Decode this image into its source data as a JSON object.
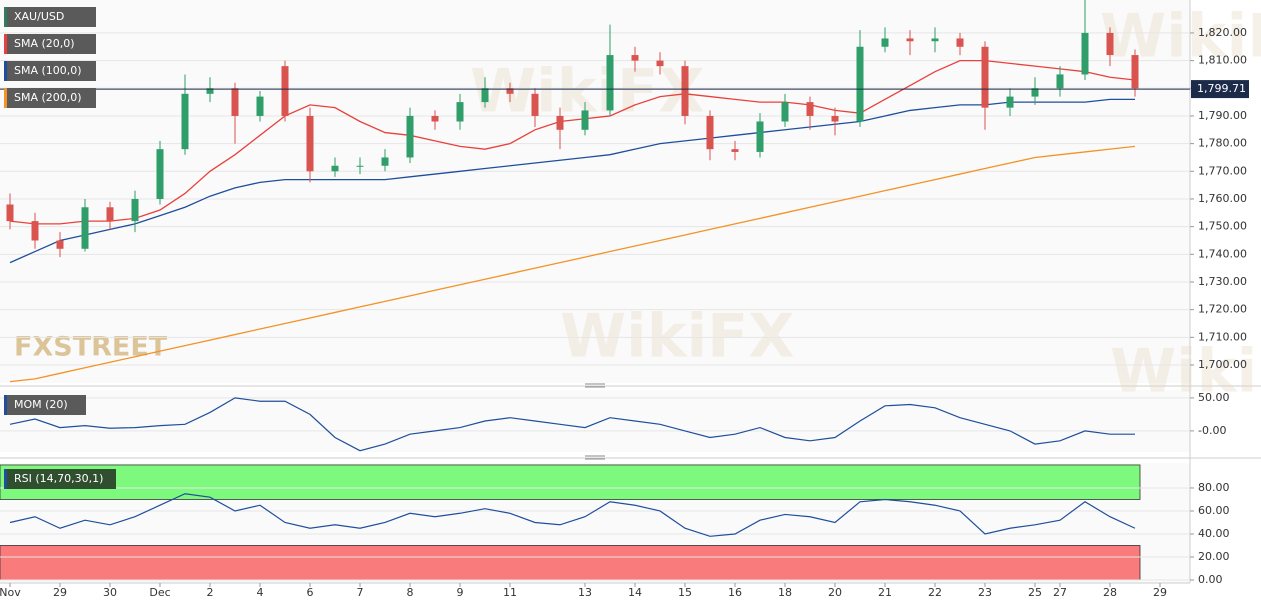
{
  "chart_data": [
    {
      "type": "candlestick",
      "watermark": "FXSTREET",
      "watermark_2": "WikiFX",
      "categories": [
        "Nov",
        null,
        "29",
        null,
        "30",
        null,
        "Dec",
        null,
        "2",
        null,
        "4",
        null,
        "6",
        null,
        "7",
        null,
        "8",
        null,
        "9",
        null,
        "11",
        null,
        null,
        "13",
        null,
        "14",
        null,
        "15",
        null,
        "16",
        null,
        "18",
        null,
        "20",
        null,
        "21",
        null,
        "22",
        null,
        "23",
        null,
        "25",
        "27",
        null,
        "28",
        null,
        "29"
      ],
      "series": [
        {
          "name": "XAU/USD",
          "legend_color": "#2e7d5b",
          "up_color": "#2f9e6a",
          "down_color": "#d9534f",
          "open": [
            1758,
            1752,
            1745,
            1742,
            1757,
            1752,
            1760,
            1778,
            1798,
            1800,
            1790,
            1808,
            1790,
            1770,
            1772,
            1772,
            1775,
            1790,
            1788,
            1795,
            1800,
            1798,
            1790,
            1785,
            1792,
            1812,
            1810,
            1808,
            1790,
            1778,
            1777,
            1788,
            1795,
            1790,
            1788,
            1815,
            1818,
            1817,
            1818,
            1815,
            1793,
            1797,
            1800,
            1805,
            1820,
            1812,
            null
          ],
          "high": [
            1762,
            1755,
            1748,
            1760,
            1759,
            1763,
            1781,
            1805,
            1804,
            1802,
            1799,
            1810,
            1793,
            1775,
            1775,
            1778,
            1793,
            1792,
            1798,
            1804,
            1802,
            1800,
            1793,
            1795,
            1823,
            1815,
            1813,
            1810,
            1792,
            1781,
            1791,
            1798,
            1797,
            1793,
            1821,
            1822,
            1821,
            1822,
            1820,
            1817,
            1800,
            1804,
            1808,
            1832,
            1822,
            1814,
            null
          ],
          "low": [
            1749,
            1742,
            1739,
            1741,
            1749,
            1748,
            1758,
            1776,
            1795,
            1780,
            1788,
            1788,
            1766,
            1768,
            1769,
            1770,
            1773,
            1785,
            1785,
            1793,
            1795,
            1786,
            1778,
            1783,
            1790,
            1806,
            1805,
            1787,
            1774,
            1774,
            1775,
            1786,
            1785,
            1783,
            1786,
            1813,
            1812,
            1813,
            1812,
            1785,
            1790,
            1794,
            1797,
            1803,
            1808,
            1797,
            null
          ],
          "close": [
            1752,
            1745,
            1742,
            1757,
            1752,
            1760,
            1778,
            1798,
            1800,
            1790,
            1797,
            1790,
            1770,
            1772,
            1772,
            1775,
            1790,
            1788,
            1795,
            1800,
            1798,
            1790,
            1785,
            1792,
            1812,
            1810,
            1808,
            1790,
            1778,
            1777,
            1788,
            1795,
            1790,
            1788,
            1815,
            1818,
            1817,
            1818,
            1815,
            1793,
            1797,
            1800,
            1805,
            1820,
            1812,
            1800,
            null
          ]
        }
      ],
      "lines": [
        {
          "name": "SMA (20,0)",
          "color": "#e8413b",
          "values": [
            1752,
            1751,
            1751,
            1752,
            1752,
            1753,
            1756,
            1762,
            1770,
            1776,
            1783,
            1790,
            1794,
            1793,
            1788,
            1784,
            1783,
            1781,
            1779,
            1778,
            1780,
            1785,
            1788,
            1789,
            1790,
            1794,
            1797,
            1798,
            1797,
            1796,
            1795,
            1795,
            1794,
            1792,
            1791,
            1796,
            1801,
            1806,
            1810,
            1810,
            1809,
            1808,
            1807,
            1806,
            1804,
            1803,
            null
          ]
        },
        {
          "name": "SMA (100,0)",
          "color": "#1f4e9c",
          "values": [
            1737,
            1741,
            1745,
            1747,
            1749,
            1751,
            1754,
            1757,
            1761,
            1764,
            1766,
            1767,
            1767,
            1767,
            1767,
            1767,
            1768,
            1769,
            1770,
            1771,
            1772,
            1773,
            1774,
            1775,
            1776,
            1778,
            1780,
            1781,
            1782,
            1783,
            1784,
            1785,
            1786,
            1787,
            1788,
            1790,
            1792,
            1793,
            1794,
            1794,
            1795,
            1795,
            1795,
            1795,
            1796,
            1796,
            null
          ]
        },
        {
          "name": "SMA (200,0)",
          "color": "#f39325",
          "values": [
            1694,
            1695,
            1697,
            1699,
            1701,
            1703,
            1705,
            1707,
            1709,
            1711,
            1713,
            1715,
            1717,
            1719,
            1721,
            1723,
            1725,
            1727,
            1729,
            1731,
            1733,
            1735,
            1737,
            1739,
            1741,
            1743,
            1745,
            1747,
            1749,
            1751,
            1753,
            1755,
            1757,
            1759,
            1761,
            1763,
            1765,
            1767,
            1769,
            1771,
            1773,
            1775,
            1776,
            1777,
            1778,
            1779,
            null
          ]
        }
      ],
      "last_price": {
        "value": 1799.71,
        "label": "1,799.71"
      },
      "last_price_color": "#1c2b4a",
      "ylim": [
        1693.5,
        1831.9
      ],
      "yticks": [
        {
          "value": 1700,
          "label": "1,700.00"
        },
        {
          "value": 1710,
          "label": "1,710.00"
        },
        {
          "value": 1720,
          "label": "1,720.00"
        },
        {
          "value": 1730,
          "label": "1,730.00"
        },
        {
          "value": 1740,
          "label": "1,740.00"
        },
        {
          "value": 1750,
          "label": "1,750.00"
        },
        {
          "value": 1760,
          "label": "1,760.00"
        },
        {
          "value": 1770,
          "label": "1,770.00"
        },
        {
          "value": 1780,
          "label": "1,780.00"
        },
        {
          "value": 1790,
          "label": "1,790.00"
        },
        {
          "value": 1800,
          "label": "1,800.00"
        },
        {
          "value": 1810,
          "label": "1,810.00"
        },
        {
          "value": 1820,
          "label": "1,820.00"
        }
      ],
      "grid": true
    },
    {
      "type": "line",
      "series": [
        {
          "name": "MOM (20)",
          "color": "#1f4e9c",
          "values": [
            10,
            18,
            5,
            8,
            4,
            5,
            8,
            10,
            28,
            50,
            45,
            45,
            25,
            -10,
            -30,
            -20,
            -5,
            0,
            5,
            15,
            20,
            15,
            10,
            5,
            20,
            15,
            10,
            0,
            -10,
            -5,
            5,
            -10,
            -15,
            -10,
            15,
            38,
            40,
            35,
            20,
            10,
            0,
            -20,
            -15,
            0,
            -5,
            -5,
            null
          ]
        }
      ],
      "ylim": [
        -32,
        62
      ],
      "yticks": [
        {
          "value": 0,
          "label": "-0.00"
        },
        {
          "value": 50,
          "label": "50.00"
        }
      ],
      "grid": true
    },
    {
      "type": "line",
      "series": [
        {
          "name": "RSI (14,70,30,1)",
          "color": "#1f4e9c",
          "values": [
            50,
            55,
            45,
            52,
            48,
            55,
            65,
            75,
            72,
            60,
            65,
            50,
            45,
            48,
            45,
            50,
            58,
            55,
            58,
            62,
            58,
            50,
            48,
            55,
            68,
            65,
            60,
            45,
            38,
            40,
            52,
            57,
            55,
            50,
            68,
            70,
            68,
            65,
            60,
            40,
            45,
            48,
            52,
            68,
            55,
            45,
            null
          ]
        }
      ],
      "bands": [
        {
          "from": 70,
          "to": 100,
          "color": "#7dfa7d"
        },
        {
          "from": 0,
          "to": 30,
          "color": "#fa7b7b"
        }
      ],
      "ylim": [
        -2.6,
        101.7
      ],
      "yticks": [
        {
          "value": 0,
          "label": "0.00"
        },
        {
          "value": 20,
          "label": "20.00"
        },
        {
          "value": 40,
          "label": "40.00"
        },
        {
          "value": 60,
          "label": "60.00"
        },
        {
          "value": 80,
          "label": "80.00"
        }
      ],
      "grid": true
    }
  ]
}
